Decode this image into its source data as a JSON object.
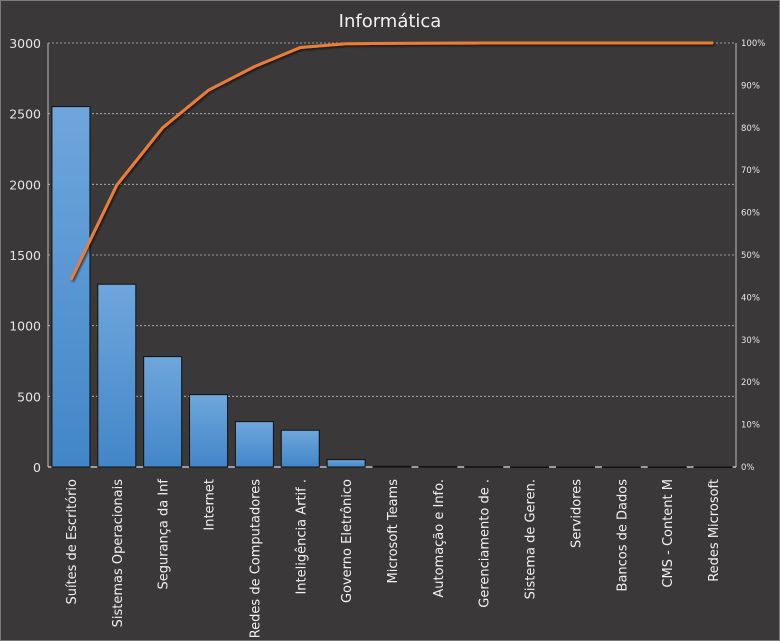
{
  "chart_data": {
    "type": "bar",
    "title": "Informática",
    "categories": [
      "Suítes de Escritório",
      "Sistemas Operacionais",
      "Segurança da Inf",
      "Internet",
      "Redes de Computadores",
      "Inteligência Artif .",
      "Governo  Eletrônico",
      "Microsoft Teams",
      "Automação e Info.",
      "Gerenciamento de .",
      "Sistema de Geren.",
      "Servidores",
      "Bancos de Dados",
      "CMS - Content M",
      "Redes Microsoft"
    ],
    "values": [
      2550,
      1293,
      781,
      512,
      321,
      260,
      52,
      5,
      3,
      2,
      0,
      0,
      0,
      0,
      0
    ],
    "cumulative_percent_series": {
      "name": "Cumulative %",
      "color": "#ed7d31"
    },
    "ylim": [
      0,
      3000
    ],
    "yticks": [
      "0",
      "500",
      "1000",
      "1500",
      "2000",
      "2500",
      "3000"
    ],
    "y2lim": [
      0,
      100
    ],
    "y2ticks": [
      "0%",
      "10%",
      "20%",
      "30%",
      "40%",
      "50%",
      "60%",
      "70%",
      "80%",
      "90%",
      "100%"
    ],
    "bar_color": "#4a8fd4",
    "grid": true,
    "xlabel": "",
    "ylabel": ""
  }
}
